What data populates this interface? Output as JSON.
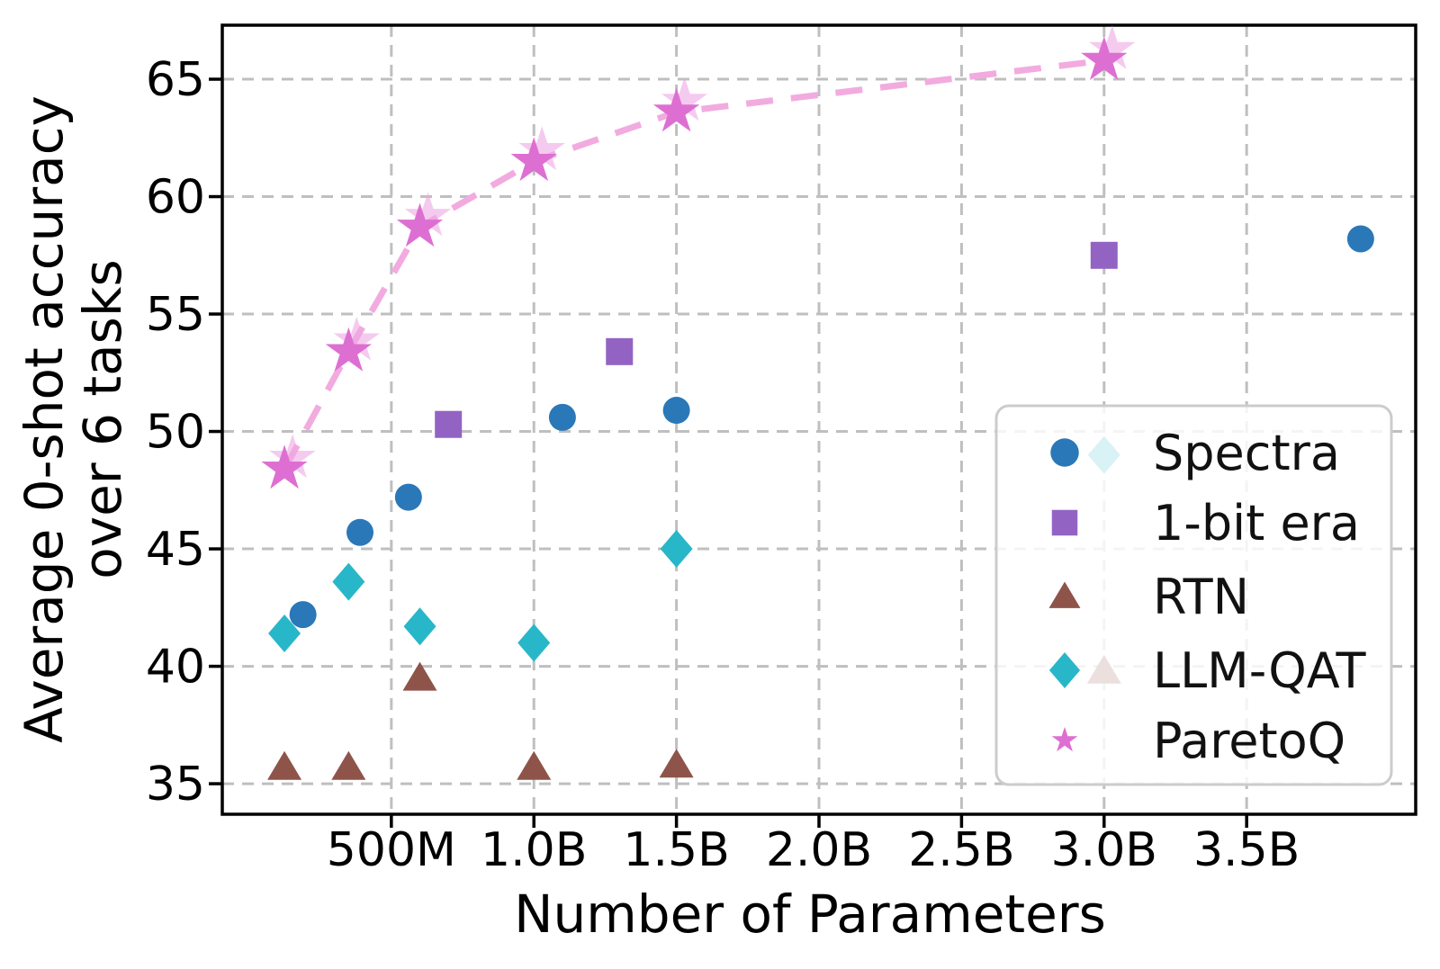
{
  "chart_data": {
    "type": "scatter",
    "title": "",
    "xlabel": "Number of Parameters",
    "ylabel_line1": "Average 0-shot accuracy",
    "ylabel_line2": "over 6 tasks",
    "xlim": [
      -0.093,
      4.093
    ],
    "ylim": [
      33.7,
      67.3
    ],
    "grid": true,
    "grid_style": "dashed",
    "legend_position": "lower right",
    "x_ticks": [
      {
        "value": 0.5,
        "label": "500M"
      },
      {
        "value": 1.0,
        "label": "1.0B"
      },
      {
        "value": 1.5,
        "label": "1.5B"
      },
      {
        "value": 2.0,
        "label": "2.0B"
      },
      {
        "value": 2.5,
        "label": "2.5B"
      },
      {
        "value": 3.0,
        "label": "3.0B"
      },
      {
        "value": 3.5,
        "label": "3.5B"
      }
    ],
    "y_ticks": [
      {
        "value": 35,
        "label": "35"
      },
      {
        "value": 40,
        "label": "40"
      },
      {
        "value": 45,
        "label": "45"
      },
      {
        "value": 50,
        "label": "50"
      },
      {
        "value": 55,
        "label": "55"
      },
      {
        "value": 60,
        "label": "60"
      },
      {
        "value": 65,
        "label": "65"
      }
    ],
    "x_unit": "billions of parameters",
    "y_unit": "percent",
    "series": [
      {
        "name": "Spectra",
        "marker": "circle",
        "color": "#2a78b8",
        "points": [
          [
            0.19,
            42.2
          ],
          [
            0.39,
            45.7
          ],
          [
            0.56,
            47.2
          ],
          [
            1.1,
            50.6
          ],
          [
            1.5,
            50.9
          ],
          [
            3.9,
            58.2
          ]
        ]
      },
      {
        "name": "1-bit era",
        "marker": "square",
        "color": "#9363c4",
        "points": [
          [
            0.7,
            50.3
          ],
          [
            1.3,
            53.4
          ],
          [
            3.0,
            57.5
          ]
        ]
      },
      {
        "name": "RTN",
        "marker": "triangle",
        "color": "#8e544a",
        "points": [
          [
            0.125,
            35.7
          ],
          [
            0.35,
            35.7
          ],
          [
            0.6,
            39.5
          ],
          [
            1.0,
            35.7
          ],
          [
            1.5,
            35.8
          ],
          [
            3.0,
            39.8
          ]
        ]
      },
      {
        "name": "LLM-QAT",
        "marker": "diamond",
        "color": "#28b7c9",
        "points": [
          [
            0.125,
            41.4
          ],
          [
            0.35,
            43.6
          ],
          [
            0.6,
            41.7
          ],
          [
            1.0,
            41.0
          ],
          [
            1.5,
            45.0
          ],
          [
            3.0,
            49.0
          ]
        ]
      },
      {
        "name": "ParetoQ",
        "marker": "star",
        "color": "#de6fd2",
        "marker_echo_color": "#efa6e4",
        "line_color": "#f2abdf",
        "line_style": "dashed",
        "points": [
          [
            0.125,
            48.4
          ],
          [
            0.35,
            53.4
          ],
          [
            0.6,
            58.7
          ],
          [
            1.0,
            61.5
          ],
          [
            1.5,
            63.6
          ],
          [
            3.0,
            65.8
          ]
        ]
      }
    ],
    "legend_labels": [
      "Spectra",
      "1-bit era",
      "RTN",
      "LLM-QAT",
      "ParetoQ"
    ]
  }
}
